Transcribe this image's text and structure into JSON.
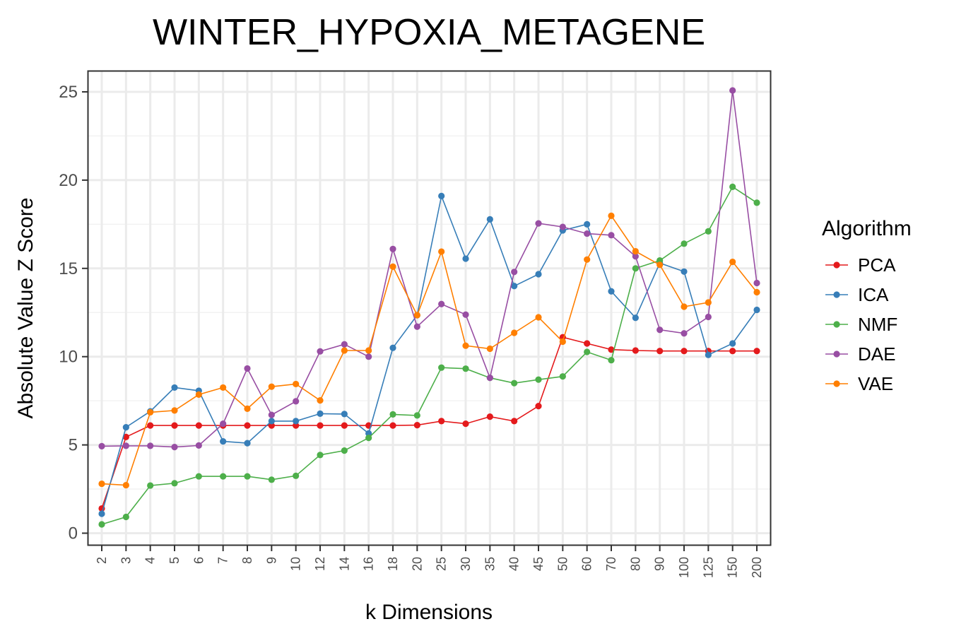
{
  "chart_data": {
    "type": "line",
    "title": "WINTER_HYPOXIA_METAGENE",
    "xlabel": "k Dimensions",
    "ylabel": "Absolute Value Z Score",
    "categories": [
      "2",
      "3",
      "4",
      "5",
      "6",
      "7",
      "8",
      "9",
      "10",
      "12",
      "14",
      "16",
      "18",
      "20",
      "25",
      "30",
      "35",
      "40",
      "45",
      "50",
      "60",
      "70",
      "80",
      "90",
      "100",
      "125",
      "150",
      "200"
    ],
    "ylim": [
      -0.7,
      26.2
    ],
    "yticks": [
      0,
      5,
      10,
      15,
      20,
      25
    ],
    "grid": true,
    "legend": {
      "title": "Algorithm",
      "position": "right"
    },
    "series": [
      {
        "name": "PCA",
        "color": "#E41A1C",
        "values": [
          1.4,
          5.45,
          6.1,
          6.1,
          6.1,
          6.1,
          6.1,
          6.1,
          6.1,
          6.1,
          6.1,
          6.1,
          6.1,
          6.12,
          6.35,
          6.2,
          6.6,
          6.35,
          7.2,
          11.1,
          10.75,
          10.4,
          10.35,
          10.32,
          10.32,
          10.32,
          10.32,
          10.32
        ]
      },
      {
        "name": "ICA",
        "color": "#377EB8",
        "values": [
          1.1,
          6.0,
          6.9,
          8.25,
          8.07,
          5.2,
          5.1,
          6.35,
          6.35,
          6.77,
          6.75,
          5.65,
          10.5,
          12.35,
          19.1,
          15.55,
          17.78,
          14.0,
          14.67,
          17.15,
          17.5,
          13.7,
          12.2,
          15.3,
          14.82,
          10.1,
          10.75,
          12.65
        ]
      },
      {
        "name": "NMF",
        "color": "#4DAF4A",
        "values": [
          0.5,
          0.92,
          2.7,
          2.83,
          3.22,
          3.22,
          3.22,
          3.03,
          3.25,
          4.43,
          4.68,
          5.4,
          6.73,
          6.67,
          9.38,
          9.32,
          8.8,
          8.5,
          8.7,
          8.88,
          10.27,
          9.8,
          15.0,
          15.45,
          16.4,
          17.1,
          19.62,
          18.72
        ]
      },
      {
        "name": "DAE",
        "color": "#984EA3",
        "values": [
          4.93,
          4.95,
          4.95,
          4.88,
          4.97,
          6.2,
          9.33,
          6.7,
          7.47,
          10.3,
          10.7,
          10.0,
          16.1,
          11.7,
          12.98,
          12.38,
          8.8,
          14.8,
          17.55,
          17.35,
          16.97,
          16.88,
          15.68,
          11.52,
          11.32,
          12.25,
          25.08,
          14.17
        ]
      },
      {
        "name": "VAE",
        "color": "#FF7F00",
        "values": [
          2.8,
          2.72,
          6.85,
          6.95,
          7.85,
          8.25,
          7.05,
          8.3,
          8.45,
          7.52,
          10.35,
          10.35,
          15.1,
          12.35,
          15.95,
          10.62,
          10.45,
          11.35,
          12.23,
          10.85,
          15.5,
          17.98,
          15.97,
          15.2,
          12.83,
          13.07,
          15.37,
          13.65
        ]
      }
    ]
  }
}
